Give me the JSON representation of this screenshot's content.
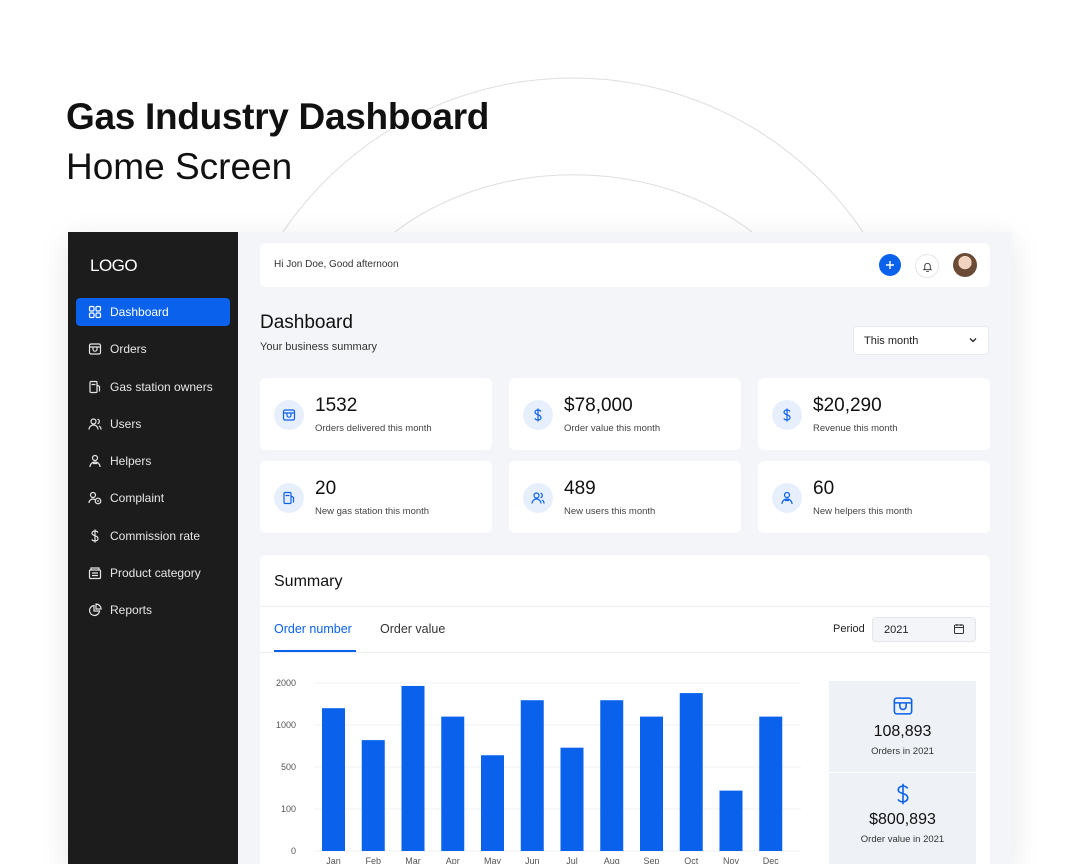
{
  "hero": {
    "title": "Gas Industry Dashboard",
    "subtitle": "Home Screen"
  },
  "app": {
    "logo": "LOGO",
    "sidebar": {
      "items": [
        {
          "label": "Dashboard",
          "icon": "grid-icon",
          "active": true
        },
        {
          "label": "Orders",
          "icon": "box-icon",
          "active": false
        },
        {
          "label": "Gas station owners",
          "icon": "gas-pump-icon",
          "active": false
        },
        {
          "label": "Users",
          "icon": "users-icon",
          "active": false
        },
        {
          "label": "Helpers",
          "icon": "helper-icon",
          "active": false
        },
        {
          "label": "Complaint",
          "icon": "complaint-icon",
          "active": false
        },
        {
          "label": "Commission rate",
          "icon": "dollar-icon",
          "active": false
        },
        {
          "label": "Product category",
          "icon": "category-icon",
          "active": false
        },
        {
          "label": "Reports",
          "icon": "pie-chart-icon",
          "active": false
        }
      ]
    },
    "topbar": {
      "greeting": "Hi Jon Doe, Good afternoon",
      "add_icon": "plus-icon",
      "notification_icon": "bell-icon"
    },
    "page": {
      "title": "Dashboard",
      "subtitle": "Your business summary",
      "range_select": "This month"
    },
    "cards": [
      {
        "value": "1532",
        "label": "Orders delivered this month",
        "icon": "box-icon"
      },
      {
        "value": "$78,000",
        "label": "Order value this month",
        "icon": "dollar-icon"
      },
      {
        "value": "$20,290",
        "label": "Revenue this month",
        "icon": "dollar-icon"
      },
      {
        "value": "20",
        "label": "New gas station this month",
        "icon": "gas-pump-icon"
      },
      {
        "value": "489",
        "label": "New users this month",
        "icon": "users-icon"
      },
      {
        "value": "60",
        "label": "New helpers this month",
        "icon": "helper-icon"
      }
    ],
    "summary": {
      "title": "Summary",
      "tabs": [
        {
          "label": "Order number",
          "active": true
        },
        {
          "label": "Order value",
          "active": false
        }
      ],
      "period_label": "Period",
      "period_value": "2021",
      "stats": [
        {
          "value": "108,893",
          "label": "Orders in 2021",
          "icon": "box-icon"
        },
        {
          "value": "$800,893",
          "label": "Order value in 2021",
          "icon": "dollar-icon"
        }
      ]
    },
    "colors": {
      "accent": "#0a62ec",
      "sidebar": "#1c1c1c",
      "background": "#f3f5f8"
    }
  },
  "chart_data": {
    "type": "bar",
    "categories": [
      "Jan",
      "Feb",
      "Mar",
      "Apr",
      "May",
      "Jun",
      "Jul",
      "Aug",
      "Sep",
      "Oct",
      "Nov",
      "Dec"
    ],
    "y_ticks": [
      "0",
      "100",
      "500",
      "1000",
      "2000"
    ],
    "values": [
      1400,
      820,
      1930,
      1200,
      640,
      1590,
      730,
      1590,
      1200,
      1760,
      275,
      1200
    ],
    "ylim": [
      0,
      2000
    ],
    "grid": true,
    "color": "#0a62ec"
  }
}
